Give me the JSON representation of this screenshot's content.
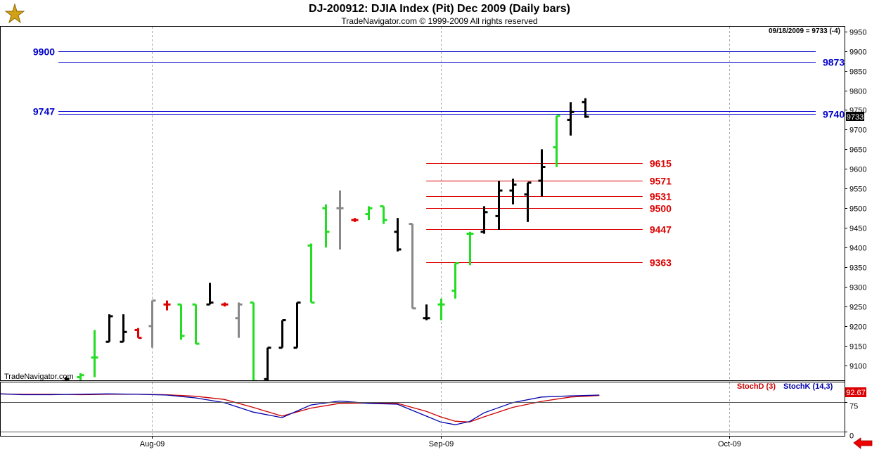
{
  "window": {
    "title": "DJ-200912:  DJIA Index (Pit) Dec 2009  (Daily bars)",
    "subtitle": "TradeNavigator.com © 1999-2009 All rights reserved",
    "watermark": "TradeNavigator.com",
    "info": "09/18/2009 = 9733 (-4)",
    "last_price_label": "9733"
  },
  "colors": {
    "up_bar": "#22dd22",
    "down_bar": "#000000",
    "gray_bar": "#888888",
    "red_bar": "#dd0000",
    "blue_level": "#0000cc",
    "red_level": "#dd0000",
    "stoch_d": "#cc0000",
    "stoch_k": "#0000aa"
  },
  "chart_data": [
    {
      "type": "ohlc",
      "title": "DJ-200912:  DJIA Index (Pit) Dec 2009  (Daily bars)",
      "ylim": [
        9062,
        9962
      ],
      "y_ticks": [
        9100,
        9150,
        9200,
        9250,
        9300,
        9350,
        9400,
        9450,
        9500,
        9550,
        9600,
        9650,
        9700,
        9750,
        9800,
        9850,
        9900,
        9950
      ],
      "x_ticks": [
        {
          "label": "Aug-09",
          "index": 5
        },
        {
          "label": "Sep-09",
          "index": 25
        },
        {
          "label": "Oct-09",
          "index": 45
        }
      ],
      "x_domain": [
        -5.5,
        53
      ],
      "bars": [
        {
          "i": -1,
          "open": 9060,
          "high": 9070,
          "low": 9040,
          "close": 9065,
          "c": "down"
        },
        {
          "i": 0,
          "open": 9070,
          "high": 9080,
          "low": 9060,
          "close": 9075,
          "c": "up"
        },
        {
          "i": 1,
          "open": 9120,
          "high": 9190,
          "low": 9070,
          "close": 9120,
          "c": "up"
        },
        {
          "i": 2,
          "open": 9160,
          "high": 9230,
          "low": 9160,
          "close": 9225,
          "c": "down"
        },
        {
          "i": 3,
          "open": 9160,
          "high": 9230,
          "low": 9160,
          "close": 9185,
          "c": "down"
        },
        {
          "i": 4,
          "open": 9190,
          "high": 9195,
          "low": 9170,
          "close": 9170,
          "c": "red"
        },
        {
          "i": 5,
          "open": 9200,
          "high": 9265,
          "low": 9145,
          "close": 9265,
          "c": "gray"
        },
        {
          "i": 6,
          "open": 9255,
          "high": 9265,
          "low": 9240,
          "close": 9255,
          "c": "red"
        },
        {
          "i": 7,
          "open": 9255,
          "high": 9255,
          "low": 9165,
          "close": 9175,
          "c": "up"
        },
        {
          "i": 8,
          "open": 9255,
          "high": 9255,
          "low": 9155,
          "close": 9155,
          "c": "up"
        },
        {
          "i": 9,
          "open": 9255,
          "high": 9310,
          "low": 9255,
          "close": 9260,
          "c": "down"
        },
        {
          "i": 10,
          "open": 9255,
          "high": 9260,
          "low": 9250,
          "close": 9255,
          "c": "red"
        },
        {
          "i": 11,
          "open": 9220,
          "high": 9260,
          "low": 9170,
          "close": 9255,
          "c": "gray"
        },
        {
          "i": 12,
          "open": 9260,
          "high": 9260,
          "low": 9060,
          "close": 9060,
          "c": "up"
        },
        {
          "i": 13,
          "open": 9065,
          "high": 9145,
          "low": 9060,
          "close": 9145,
          "c": "down"
        },
        {
          "i": 14,
          "open": 9145,
          "high": 9215,
          "low": 9145,
          "close": 9215,
          "c": "down"
        },
        {
          "i": 15,
          "open": 9145,
          "high": 9260,
          "low": 9145,
          "close": 9260,
          "c": "down"
        },
        {
          "i": 16,
          "open": 9405,
          "high": 9410,
          "low": 9260,
          "close": 9260,
          "c": "up"
        },
        {
          "i": 17,
          "open": 9500,
          "high": 9510,
          "low": 9400,
          "close": 9440,
          "c": "up"
        },
        {
          "i": 18,
          "open": 9500,
          "high": 9545,
          "low": 9395,
          "close": 9500,
          "c": "gray"
        },
        {
          "i": 19,
          "open": 9470,
          "high": 9475,
          "low": 9465,
          "close": 9470,
          "c": "red"
        },
        {
          "i": 20,
          "open": 9485,
          "high": 9505,
          "low": 9470,
          "close": 9500,
          "c": "up"
        },
        {
          "i": 21,
          "open": 9505,
          "high": 9505,
          "low": 9460,
          "close": 9470,
          "c": "up"
        },
        {
          "i": 22,
          "open": 9440,
          "high": 9475,
          "low": 9390,
          "close": 9395,
          "c": "down"
        },
        {
          "i": 23,
          "open": 9460,
          "high": 9460,
          "low": 9245,
          "close": 9245,
          "c": "gray"
        },
        {
          "i": 24,
          "open": 9220,
          "high": 9255,
          "low": 9215,
          "close": 9220,
          "c": "down"
        },
        {
          "i": 25,
          "open": 9255,
          "high": 9270,
          "low": 9215,
          "close": 9255,
          "c": "up"
        },
        {
          "i": 26,
          "open": 9290,
          "high": 9360,
          "low": 9270,
          "close": 9360,
          "c": "up"
        },
        {
          "i": 27,
          "open": 9435,
          "high": 9440,
          "low": 9355,
          "close": 9435,
          "c": "up"
        },
        {
          "i": 28,
          "open": 9440,
          "high": 9505,
          "low": 9435,
          "close": 9490,
          "c": "down"
        },
        {
          "i": 29,
          "open": 9480,
          "high": 9570,
          "low": 9445,
          "close": 9545,
          "c": "down"
        },
        {
          "i": 30,
          "open": 9545,
          "high": 9575,
          "low": 9510,
          "close": 9560,
          "c": "down"
        },
        {
          "i": 31,
          "open": 9535,
          "high": 9565,
          "low": 9465,
          "close": 9565,
          "c": "down"
        },
        {
          "i": 32,
          "open": 9570,
          "high": 9650,
          "low": 9530,
          "close": 9605,
          "c": "down"
        },
        {
          "i": 33,
          "open": 9655,
          "high": 9735,
          "low": 9605,
          "close": 9735,
          "c": "up"
        },
        {
          "i": 34,
          "open": 9725,
          "high": 9770,
          "low": 9685,
          "close": 9745,
          "c": "down"
        },
        {
          "i": 35,
          "open": 9770,
          "high": 9780,
          "low": 9730,
          "close": 9733,
          "c": "down"
        }
      ],
      "levels": [
        {
          "value": 9900,
          "label": "9900",
          "color": "blue",
          "from_i": -1.5,
          "to_i": 51,
          "label_side": "left"
        },
        {
          "value": 9873,
          "label": "9873",
          "color": "blue",
          "from_i": -1.5,
          "to_i": 51,
          "label_side": "right"
        },
        {
          "value": 9747,
          "label": "9747",
          "color": "blue",
          "from_i": -1.5,
          "to_i": 51,
          "label_side": "left"
        },
        {
          "value": 9740,
          "label": "9740",
          "color": "blue",
          "from_i": -1.5,
          "to_i": 51,
          "label_side": "right"
        },
        {
          "value": 9615,
          "label": "9615",
          "color": "red",
          "from_i": 24,
          "to_i": 39,
          "label_side": "right"
        },
        {
          "value": 9571,
          "label": "9571",
          "color": "red",
          "from_i": 24,
          "to_i": 39,
          "label_side": "right"
        },
        {
          "value": 9531,
          "label": "9531",
          "color": "red",
          "from_i": 24,
          "to_i": 39,
          "label_side": "right"
        },
        {
          "value": 9500,
          "label": "9500",
          "color": "red",
          "from_i": 24,
          "to_i": 39,
          "label_side": "right"
        },
        {
          "value": 9447,
          "label": "9447",
          "color": "red",
          "from_i": 24,
          "to_i": 39,
          "label_side": "right"
        },
        {
          "value": 9363,
          "label": "9363",
          "color": "red",
          "from_i": 24,
          "to_i": 39,
          "label_side": "right"
        }
      ]
    },
    {
      "type": "line",
      "ylim": [
        -10,
        125
      ],
      "y_ticks": [
        0,
        75
      ],
      "legend": [
        "StochD (3)",
        "StochK (14,3)"
      ],
      "last_value_label": "92.67",
      "series": [
        {
          "name": "StochD (3)",
          "color": "red",
          "x": [
            -8,
            -6,
            -4,
            -2,
            0,
            2,
            4,
            6,
            8,
            10,
            12,
            14,
            16,
            18,
            20,
            22,
            24,
            25,
            26,
            27,
            28,
            30,
            32,
            34,
            36
          ],
          "values": [
            95,
            96,
            95,
            95,
            94,
            95,
            95,
            94,
            90,
            82,
            62,
            40,
            60,
            72,
            73,
            72,
            52,
            38,
            27,
            25,
            38,
            62,
            77,
            88,
            92
          ]
        },
        {
          "name": "StochK (14,3)",
          "color": "blue",
          "x": [
            -8,
            -6,
            -4,
            -2,
            0,
            2,
            4,
            6,
            8,
            10,
            12,
            14,
            16,
            18,
            20,
            22,
            24,
            25,
            26,
            27,
            28,
            30,
            32,
            34,
            36
          ],
          "values": [
            96,
            97,
            94,
            94,
            95,
            96,
            95,
            93,
            86,
            74,
            50,
            36,
            68,
            78,
            72,
            70,
            40,
            25,
            18,
            26,
            48,
            74,
            88,
            91,
            93
          ]
        }
      ]
    }
  ]
}
